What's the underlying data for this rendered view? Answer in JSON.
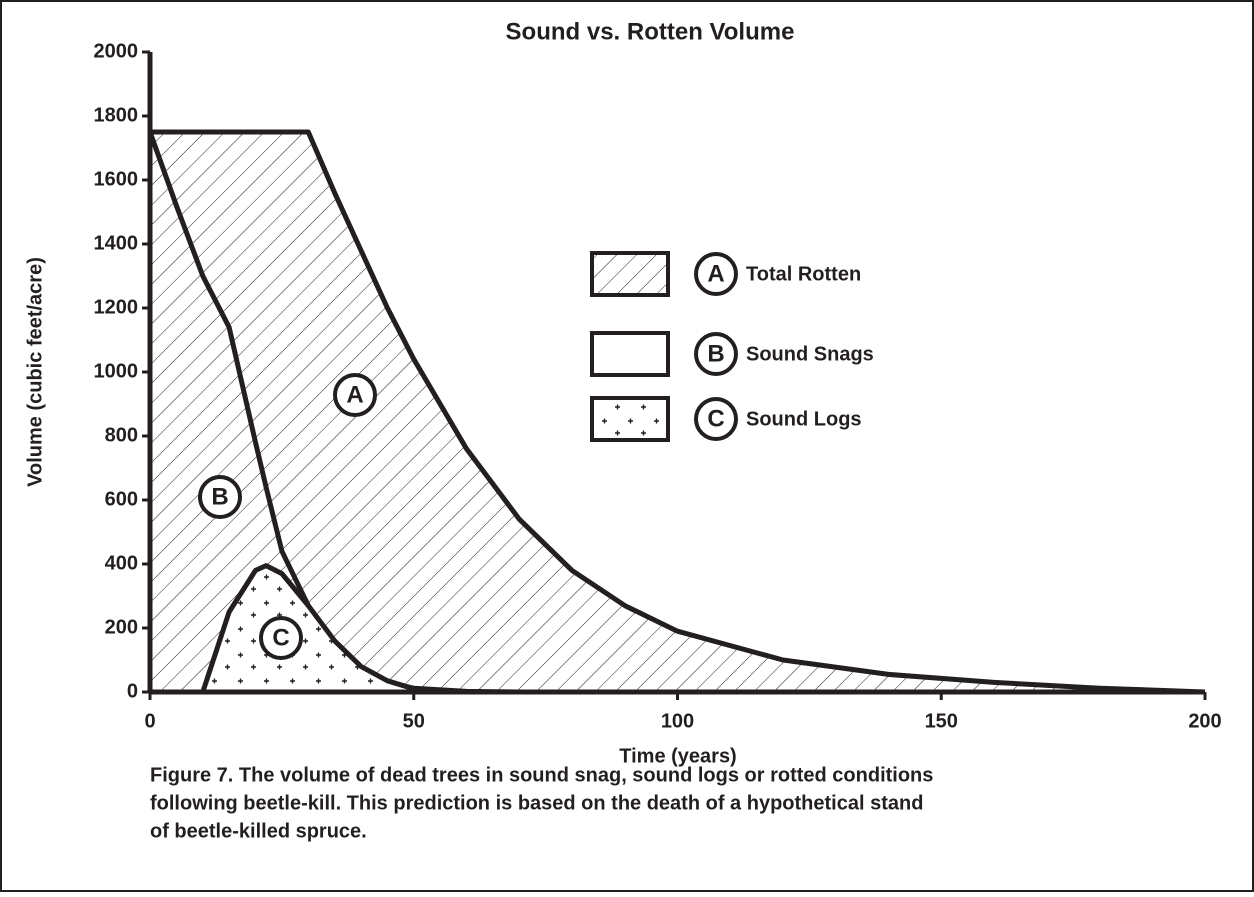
{
  "chart_data": {
    "type": "area",
    "title": "Sound vs. Rotten Volume",
    "x_label": "Time (years)",
    "y_label": "Volume (cubic feet/acre)",
    "caption": [
      "Figure 7. The volume of dead trees in sound snag, sound logs or rotted conditions",
      "following beetle-kill. This prediction is based on the death of a hypothetical stand",
      "of beetle-killed spruce."
    ],
    "x": [
      0,
      5,
      10,
      15,
      20,
      22,
      25,
      30,
      35,
      40,
      45,
      50,
      60,
      70,
      80,
      90,
      100,
      120,
      140,
      160,
      180,
      200
    ],
    "series": [
      {
        "name": "Total Rotten",
        "marker": "A",
        "color": "#231f20",
        "fill": "hatch",
        "values": [
          1750,
          1750,
          1750,
          1750,
          1750,
          1750,
          1750,
          1750,
          1560,
          1380,
          1200,
          1040,
          760,
          540,
          380,
          270,
          190,
          100,
          55,
          30,
          12,
          0
        ]
      },
      {
        "name": "Sound Snags",
        "marker": "B",
        "color": "#231f20",
        "fill": "none",
        "values": [
          1750,
          1520,
          1300,
          1140,
          780,
          640,
          440,
          270,
          140,
          65,
          30,
          12,
          2,
          0,
          0,
          0,
          0,
          0,
          0,
          0,
          0,
          0
        ]
      },
      {
        "name": "Sound Logs",
        "marker": "C",
        "color": "#231f20",
        "fill": "dots",
        "values": [
          0,
          0,
          0,
          250,
          380,
          395,
          370,
          270,
          160,
          80,
          35,
          10,
          0,
          0,
          0,
          0,
          0,
          0,
          0,
          0,
          0,
          0
        ]
      }
    ],
    "xlim": [
      0,
      200
    ],
    "ylim": [
      0,
      2000
    ],
    "xticks": [
      0,
      50,
      100,
      150,
      200
    ],
    "yticks": [
      0,
      200,
      400,
      600,
      800,
      1000,
      1200,
      1400,
      1600,
      1800,
      2000
    ]
  }
}
